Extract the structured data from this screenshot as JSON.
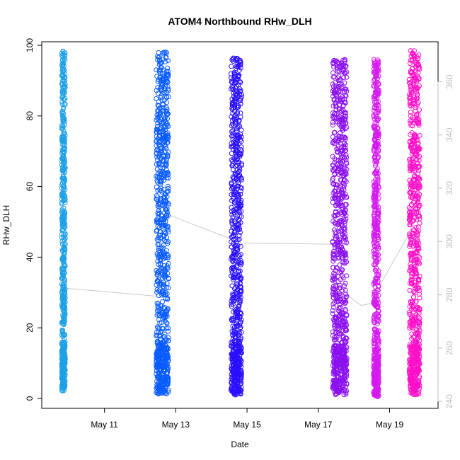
{
  "chart_data": {
    "type": "scatter",
    "title": "ATOM4 Northbound RHw_DLH",
    "xlabel": "Date",
    "ylabel": "RHw_DLH",
    "x_ticks": [
      "May 11",
      "May 13",
      "May 15",
      "May 17",
      "May 19"
    ],
    "x_tick_days": [
      11,
      13,
      15,
      17,
      19
    ],
    "xlim_days": [
      9.24,
      20.36
    ],
    "ylim": [
      -2.8,
      101
    ],
    "y_ticks": [
      0,
      20,
      40,
      60,
      80,
      100
    ],
    "y2_ticks": [
      240,
      260,
      280,
      300,
      320,
      340,
      360
    ],
    "y2lim": [
      237.4,
      375
    ],
    "y2_color": "#bebebe",
    "grid": false,
    "legend": "none",
    "marker": "open-circle",
    "series": [
      {
        "start_day": 9.8,
        "end_day": 9.9,
        "y_min": 2,
        "y_max": 98.5,
        "color": "#1ea0e6"
      },
      {
        "start_day": 12.45,
        "end_day": 12.8,
        "y_min": 1,
        "y_max": 99,
        "color": "#0a5cff"
      },
      {
        "start_day": 14.55,
        "end_day": 14.85,
        "y_min": 1,
        "y_max": 96.5,
        "color": "#2a10ff"
      },
      {
        "start_day": 17.4,
        "end_day": 17.8,
        "y_min": 1,
        "y_max": 96,
        "color": "#8b10ef"
      },
      {
        "start_day": 18.55,
        "end_day": 18.7,
        "y_min": 0.5,
        "y_max": 96,
        "color": "#d51aef"
      },
      {
        "start_day": 19.55,
        "end_day": 19.85,
        "y_min": 1,
        "y_max": 98.5,
        "color": "#ff10c8"
      }
    ],
    "secondary_line": {
      "color": "#c8c8c8",
      "points": [
        {
          "day": 9.8,
          "y2": 300
        },
        {
          "day": 9.9,
          "y2": 282.5
        },
        {
          "day": 12.45,
          "y2": 279.5
        },
        {
          "day": 12.8,
          "y2": 310
        },
        {
          "day": 14.55,
          "y2": 301
        },
        {
          "day": 14.85,
          "y2": 299.5
        },
        {
          "day": 17.4,
          "y2": 299
        },
        {
          "day": 17.5,
          "y2": 300
        },
        {
          "day": 17.8,
          "y2": 280
        },
        {
          "day": 18.2,
          "y2": 276
        },
        {
          "day": 18.55,
          "y2": 277
        },
        {
          "day": 18.7,
          "y2": 283
        },
        {
          "day": 19.55,
          "y2": 303
        },
        {
          "day": 19.85,
          "y2": 320
        }
      ]
    }
  }
}
